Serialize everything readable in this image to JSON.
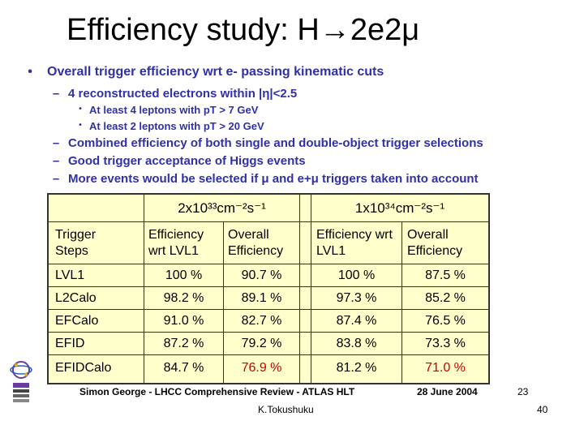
{
  "slide": {
    "title": "Efficiency study: H→2e2μ"
  },
  "bullets": [
    {
      "level": 0,
      "marker": "•",
      "text": "Overall trigger efficiency wrt e- passing kinematic cuts"
    },
    {
      "level": 1,
      "marker": "–",
      "text": "4 reconstructed electrons within |η|<2.5"
    },
    {
      "level": 2,
      "marker": "•",
      "text": "At least 4 leptons with pT > 7 GeV"
    },
    {
      "level": 2,
      "marker": "•",
      "text": "At least 2 leptons with pT > 20 GeV"
    },
    {
      "level": 1,
      "marker": "–",
      "text": "Combined efficiency of both single and double-object trigger selections"
    },
    {
      "level": 1,
      "marker": "–",
      "text": "Good trigger acceptance of Higgs events"
    },
    {
      "level": 1,
      "marker": "–",
      "text": "More events would be selected if μ and e+μ triggers taken into account"
    }
  ],
  "table": {
    "lumi_low": "2x10³³cm⁻²s⁻¹",
    "lumi_high": "1x10³⁴cm⁻²s⁻¹",
    "col_steps": "Trigger Steps",
    "col_eff_lvl1_a": "Efficiency wrt LVL1",
    "col_overall_a": "Overall Efficiency",
    "col_eff_lvl1_b": "Efficiency wrt LVL1",
    "col_overall_b": "Overall Efficiency",
    "rows": [
      {
        "step": "LVL1",
        "eff_a": "100 %",
        "ovr_a": "90.7 %",
        "eff_b": "100 %",
        "ovr_b": "87.5 %"
      },
      {
        "step": "L2Calo",
        "eff_a": "98.2 %",
        "ovr_a": "89.1 %",
        "eff_b": "97.3 %",
        "ovr_b": "85.2 %"
      },
      {
        "step": "EFCalo",
        "eff_a": "91.0 %",
        "ovr_a": "82.7 %",
        "eff_b": "87.4 %",
        "ovr_b": "76.5 %"
      },
      {
        "step": "EFID",
        "eff_a": "87.2 %",
        "ovr_a": "79.2 %",
        "eff_b": "83.8 %",
        "ovr_b": "73.3 %"
      },
      {
        "step": "EFIDCalo",
        "eff_a": "84.7 %",
        "ovr_a": "76.9 %",
        "eff_b": "81.2 %",
        "ovr_b": "71.0 %"
      }
    ],
    "highlight_color": "#cc0000",
    "background_color": "#ffffcc"
  },
  "footer": {
    "reference": "Simon George - LHCC Comprehensive Review - ATLAS HLT",
    "date": "28 June 2004",
    "inner_page": "23",
    "author": "K.Tokushuku",
    "page_number": "40"
  }
}
